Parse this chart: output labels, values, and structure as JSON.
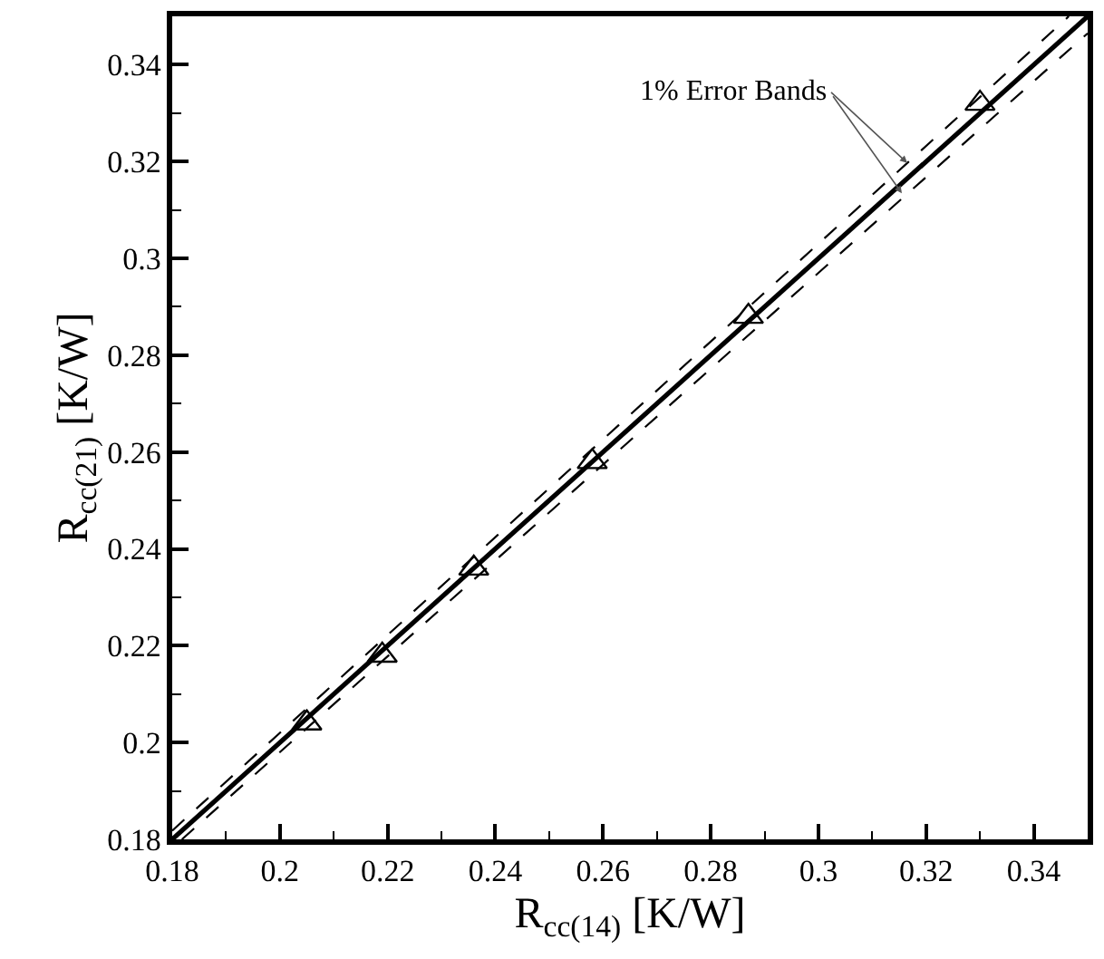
{
  "chart_data": {
    "type": "scatter",
    "xlabel": "R$_{cc(14)}$ [K/W]",
    "ylabel": "R$_{cc(21)}$ [K/W]",
    "xlim": [
      0.18,
      0.35
    ],
    "ylim": [
      0.18,
      0.35
    ],
    "xticks": [
      0.18,
      0.2,
      0.22,
      0.24,
      0.26,
      0.28,
      0.3,
      0.32,
      0.34
    ],
    "yticks": [
      0.18,
      0.2,
      0.22,
      0.24,
      0.26,
      0.28,
      0.3,
      0.32,
      0.34
    ],
    "annotations": [
      {
        "text": "1% Error Bands",
        "x": 0.3165,
        "y": 0.3197
      }
    ],
    "series": [
      {
        "marker": "triangle",
        "color": "#000000",
        "x": [
          0.205,
          0.219,
          0.236,
          0.258,
          0.287,
          0.33
        ],
        "values": [
          0.204,
          0.218,
          0.236,
          0.258,
          0.288,
          0.332
        ]
      },
      {
        "type": "line",
        "marker": "none",
        "line_style": "solid",
        "color": "#000000",
        "x": [
          0.18,
          0.35
        ],
        "values": [
          0.18,
          0.35
        ]
      },
      {
        "type": "line",
        "marker": "none",
        "line_style": "dashed",
        "color": "#000000",
        "x": [
          0.18,
          0.3465
        ],
        "values": [
          0.1818,
          0.35
        ]
      },
      {
        "type": "line",
        "marker": "none",
        "line_style": "dashed",
        "color": "#000000",
        "x": [
          0.1818,
          0.35
        ],
        "values": [
          0.18,
          0.3465
        ]
      }
    ]
  }
}
